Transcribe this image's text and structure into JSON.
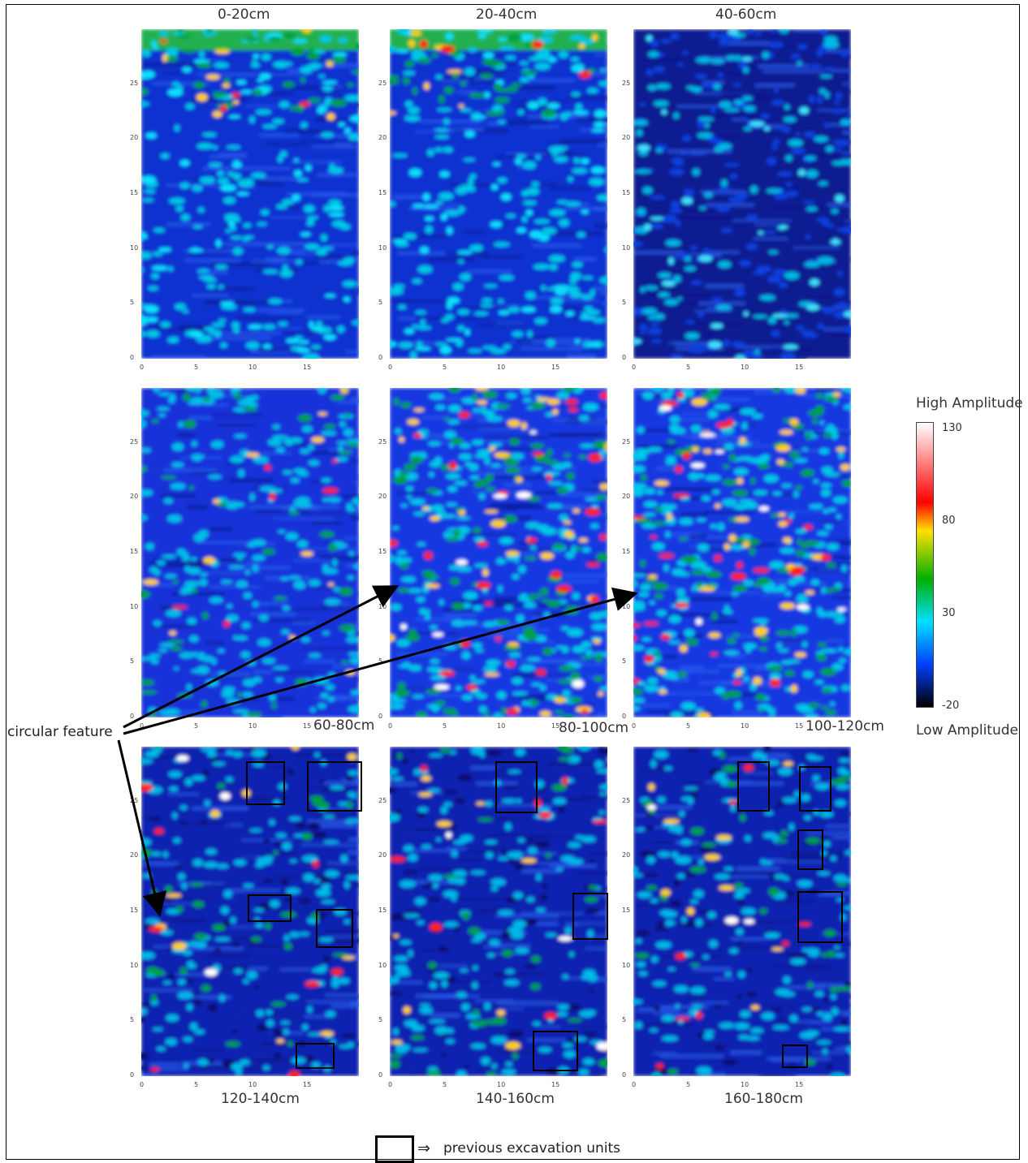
{
  "panels": [
    {
      "label": "0-20cm",
      "style": "shallow"
    },
    {
      "label": "20-40cm",
      "style": "shallow"
    },
    {
      "label": "40-60cm",
      "style": "deep"
    },
    {
      "label": "60-80cm",
      "style": "mid"
    },
    {
      "label": "80-100cm",
      "style": "hot"
    },
    {
      "label": "100-120cm",
      "style": "hot"
    },
    {
      "label": "120-140cm",
      "style": "low"
    },
    {
      "label": "140-160cm",
      "style": "low"
    },
    {
      "label": "160-180cm",
      "style": "low"
    }
  ],
  "axis": {
    "y_ticks": [
      "0",
      "5",
      "10",
      "15",
      "20",
      "25"
    ],
    "x_ticks": [
      "0",
      "5",
      "10",
      "15"
    ]
  },
  "legend": {
    "high_label": "High Amplitude",
    "low_label": "Low Amplitude",
    "ticks": [
      "130",
      "80",
      "30",
      "-20"
    ],
    "colors": [
      "#ffffff",
      "#ff0000",
      "#ffe000",
      "#00b000",
      "#00e0ff",
      "#0040ff",
      "#000000"
    ]
  },
  "annotation": {
    "label": "circular feature"
  },
  "footer": {
    "label": "previous excavation units"
  }
}
